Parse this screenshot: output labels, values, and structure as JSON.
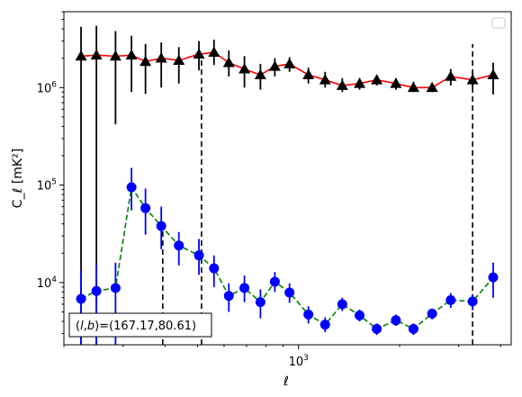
{
  "chart_data": {
    "type": "line",
    "xscale": "log",
    "yscale": "log",
    "xlim": [
      200,
      4300
    ],
    "ylim": [
      2300,
      6000000
    ],
    "xlabel": "ℓ",
    "ylabel": "C_ℓ  [mK²]",
    "x_tick_labels": [
      {
        "value": 1000,
        "base": "10",
        "exp": "3"
      }
    ],
    "y_tick_labels": [
      {
        "value": 10000,
        "base": "10",
        "exp": "4"
      },
      {
        "value": 100000,
        "base": "10",
        "exp": "5"
      },
      {
        "value": 1000000,
        "base": "10",
        "exp": "6"
      }
    ],
    "annotation": "(l, b)=(167.17,80.61)",
    "legend": {
      "location": "upper right",
      "entries": []
    },
    "vlines": [
      {
        "x": 394,
        "style": "dashed",
        "color": "#000000",
        "ymin": 2300,
        "ymax": 36000
      },
      {
        "x": 514,
        "style": "dashed",
        "color": "#000000",
        "ymin": 2300,
        "ymax": 2200000
      },
      {
        "x": 3300,
        "style": "dashed",
        "color": "#000000",
        "ymin": 2300,
        "ymax": 2800000
      }
    ],
    "series": [
      {
        "marker": "triangle",
        "marker_color": "#000000",
        "line_color": "#ff0000",
        "line_style": "solid",
        "points": [
          {
            "x": 225,
            "y": 2100000,
            "lo": 2300,
            "hi": 4200000
          },
          {
            "x": 250,
            "y": 2150000,
            "lo": 2300,
            "hi": 4300000
          },
          {
            "x": 285,
            "y": 2100000,
            "lo": 420000,
            "hi": 3800000
          },
          {
            "x": 318,
            "y": 2150000,
            "lo": 900000,
            "hi": 3400000
          },
          {
            "x": 350,
            "y": 1850000,
            "lo": 860000,
            "hi": 2800000
          },
          {
            "x": 390,
            "y": 2000000,
            "lo": 1000000,
            "hi": 2900000
          },
          {
            "x": 440,
            "y": 1900000,
            "lo": 1100000,
            "hi": 2600000
          },
          {
            "x": 505,
            "y": 2200000,
            "lo": 1500000,
            "hi": 3000000
          },
          {
            "x": 560,
            "y": 2300000,
            "lo": 1700000,
            "hi": 3100000
          },
          {
            "x": 620,
            "y": 1800000,
            "lo": 1300000,
            "hi": 2400000
          },
          {
            "x": 690,
            "y": 1550000,
            "lo": 1000000,
            "hi": 2100000
          },
          {
            "x": 770,
            "y": 1350000,
            "lo": 950000,
            "hi": 1750000
          },
          {
            "x": 850,
            "y": 1650000,
            "lo": 1300000,
            "hi": 2000000
          },
          {
            "x": 940,
            "y": 1750000,
            "lo": 1450000,
            "hi": 2050000
          },
          {
            "x": 1070,
            "y": 1350000,
            "lo": 1100000,
            "hi": 1600000
          },
          {
            "x": 1200,
            "y": 1200000,
            "lo": 1000000,
            "hi": 1450000
          },
          {
            "x": 1350,
            "y": 1050000,
            "lo": 900000,
            "hi": 1250000
          },
          {
            "x": 1520,
            "y": 1100000,
            "lo": 950000,
            "hi": 1250000
          },
          {
            "x": 1710,
            "y": 1200000,
            "lo": 1050000,
            "hi": 1350000
          },
          {
            "x": 1950,
            "y": 1100000,
            "lo": 950000,
            "hi": 1250000
          },
          {
            "x": 2200,
            "y": 1000000,
            "lo": 900000,
            "hi": 1150000
          },
          {
            "x": 2500,
            "y": 1000000,
            "lo": 900000,
            "hi": 1100000
          },
          {
            "x": 2840,
            "y": 1300000,
            "lo": 1050000,
            "hi": 1550000
          },
          {
            "x": 3300,
            "y": 1200000,
            "lo": 1000000,
            "hi": 1450000
          },
          {
            "x": 3800,
            "y": 1350000,
            "lo": 850000,
            "hi": 1800000
          }
        ]
      },
      {
        "marker": "circle",
        "marker_color": "#0000ff",
        "line_color": "#008000",
        "line_style": "dashed",
        "points": [
          {
            "x": 225,
            "y": 6800,
            "lo": 2300,
            "hi": 13500
          },
          {
            "x": 250,
            "y": 8200,
            "lo": 2300,
            "hi": 15500
          },
          {
            "x": 285,
            "y": 8800,
            "lo": 2300,
            "hi": 16000
          },
          {
            "x": 318,
            "y": 95000,
            "lo": 55000,
            "hi": 150000
          },
          {
            "x": 350,
            "y": 58000,
            "lo": 31000,
            "hi": 92000
          },
          {
            "x": 390,
            "y": 38000,
            "lo": 22000,
            "hi": 60000
          },
          {
            "x": 440,
            "y": 24000,
            "lo": 15000,
            "hi": 33000
          },
          {
            "x": 505,
            "y": 19000,
            "lo": 12000,
            "hi": 28000
          },
          {
            "x": 560,
            "y": 14000,
            "lo": 9000,
            "hi": 19000
          },
          {
            "x": 620,
            "y": 7300,
            "lo": 5000,
            "hi": 9800
          },
          {
            "x": 690,
            "y": 8800,
            "lo": 6300,
            "hi": 11800
          },
          {
            "x": 770,
            "y": 6300,
            "lo": 4300,
            "hi": 8500
          },
          {
            "x": 850,
            "y": 10200,
            "lo": 8000,
            "hi": 12800
          },
          {
            "x": 940,
            "y": 7900,
            "lo": 6200,
            "hi": 9800
          },
          {
            "x": 1070,
            "y": 4700,
            "lo": 3800,
            "hi": 5700
          },
          {
            "x": 1200,
            "y": 3700,
            "lo": 3100,
            "hi": 4400
          },
          {
            "x": 1350,
            "y": 6000,
            "lo": 5100,
            "hi": 7000
          },
          {
            "x": 1520,
            "y": 4600,
            "lo": 4000,
            "hi": 5300
          },
          {
            "x": 1710,
            "y": 3350,
            "lo": 2900,
            "hi": 3800
          },
          {
            "x": 1950,
            "y": 4100,
            "lo": 3600,
            "hi": 4700
          },
          {
            "x": 2200,
            "y": 3350,
            "lo": 2900,
            "hi": 3800
          },
          {
            "x": 2500,
            "y": 4800,
            "lo": 4200,
            "hi": 5400
          },
          {
            "x": 2840,
            "y": 6600,
            "lo": 5500,
            "hi": 7800
          },
          {
            "x": 3300,
            "y": 6400,
            "lo": 5200,
            "hi": 7600
          },
          {
            "x": 3800,
            "y": 11300,
            "lo": 7000,
            "hi": 16000
          }
        ]
      }
    ]
  }
}
